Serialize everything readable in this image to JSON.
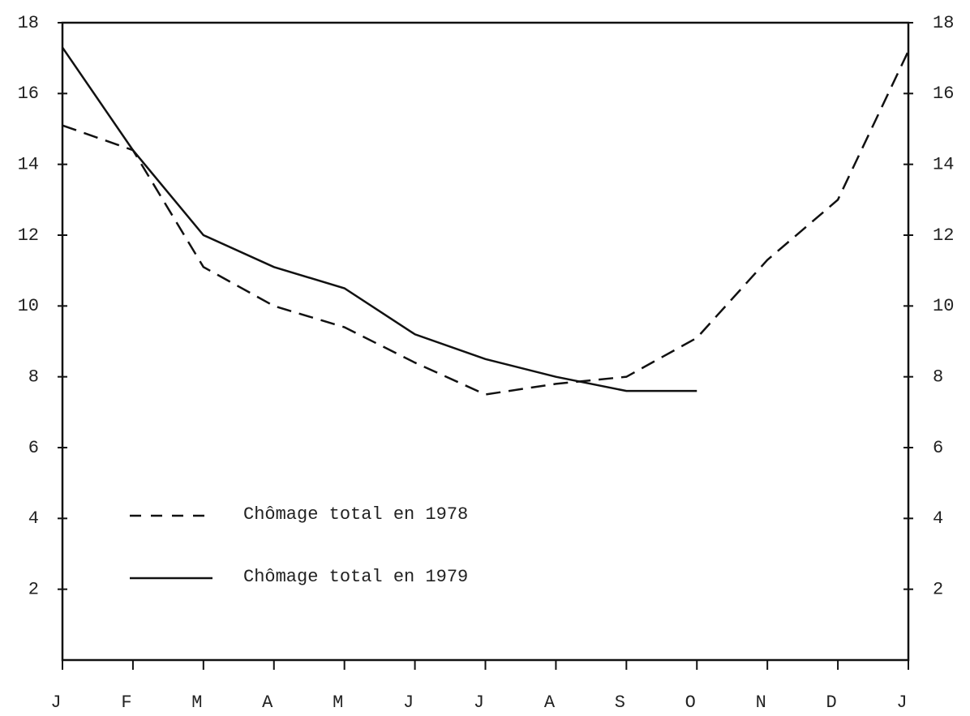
{
  "chart_data": {
    "type": "line",
    "categories": [
      "J",
      "F",
      "M",
      "A",
      "M",
      "J",
      "J",
      "A",
      "S",
      "O",
      "N",
      "D",
      "J"
    ],
    "series": [
      {
        "name": "Chômage total en 1978",
        "color": "#111111",
        "dash": "dashed",
        "values": [
          15.1,
          14.4,
          11.1,
          10.0,
          9.4,
          8.4,
          7.5,
          7.8,
          8.0,
          9.1,
          11.3,
          13.0,
          17.2
        ]
      },
      {
        "name": "Chômage total en 1979",
        "color": "#111111",
        "dash": "solid",
        "values": [
          17.3,
          14.4,
          12.0,
          11.1,
          10.5,
          9.2,
          8.5,
          8.0,
          7.6,
          7.6,
          null,
          null,
          null
        ]
      }
    ],
    "ylim": [
      0,
      18
    ],
    "yticks": [
      2,
      4,
      6,
      8,
      10,
      12,
      14,
      16,
      18
    ],
    "y2lim": [
      0,
      18
    ],
    "y2ticks": [
      2,
      4,
      6,
      8,
      10,
      12,
      14,
      16,
      18
    ],
    "grid": false,
    "legend": "lower left"
  }
}
